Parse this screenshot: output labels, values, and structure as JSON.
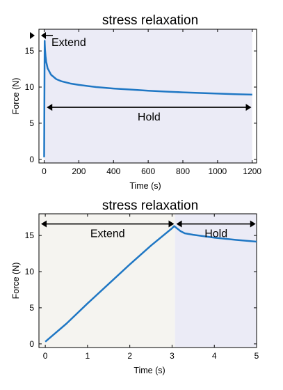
{
  "chart_data": [
    {
      "type": "line",
      "title": "stress relaxation",
      "xlabel": "Time (s)",
      "ylabel": "Force (N)",
      "xlim": [
        -30,
        1225
      ],
      "ylim": [
        -0.5,
        18
      ],
      "xticks": [
        0,
        200,
        400,
        600,
        800,
        1000,
        1200
      ],
      "yticks": [
        0,
        5,
        10,
        15
      ],
      "grid": false,
      "line_color": "#1f77c4",
      "regions": [
        {
          "label": "Extend",
          "x": [
            0,
            3
          ],
          "color": "#f5f4f0"
        },
        {
          "label": "Hold",
          "x": [
            3,
            1200
          ],
          "color": "#ebebf6"
        }
      ],
      "annotations": [
        {
          "label": "Extend",
          "x": [
            0,
            3
          ],
          "y": 17.2
        },
        {
          "label": "Hold",
          "x": [
            15,
            1195
          ],
          "y": 7.2
        }
      ],
      "series": [
        {
          "x": [
            0,
            3,
            3.5,
            5,
            8,
            12,
            20,
            40,
            70,
            100,
            150,
            200,
            300,
            400,
            500,
            600,
            700,
            800,
            900,
            1000,
            1100,
            1200
          ],
          "y": [
            0.3,
            16.4,
            16.0,
            15.2,
            14.3,
            13.5,
            12.6,
            11.7,
            11.1,
            10.8,
            10.5,
            10.3,
            10.0,
            9.8,
            9.65,
            9.5,
            9.38,
            9.27,
            9.18,
            9.1,
            9.02,
            8.95
          ]
        }
      ]
    },
    {
      "type": "line",
      "title": "stress relaxation",
      "xlabel": "Time (s)",
      "ylabel": "Force (N)",
      "xlim": [
        -0.15,
        5
      ],
      "ylim": [
        -0.5,
        18
      ],
      "xticks": [
        0,
        1,
        2,
        3,
        4,
        5
      ],
      "yticks": [
        0,
        5,
        10,
        15
      ],
      "grid": false,
      "line_color": "#1f77c4",
      "regions": [
        {
          "label": "Extend",
          "x": [
            -0.15,
            3.07
          ],
          "color": "#f5f4f0"
        },
        {
          "label": "Hold",
          "x": [
            3.07,
            5
          ],
          "color": "#ebebf6"
        }
      ],
      "annotations": [
        {
          "label": "Extend",
          "x": [
            -0.1,
            3.05
          ],
          "y": 16.6
        },
        {
          "label": "Hold",
          "x": [
            3.1,
            4.98
          ],
          "y": 16.6
        }
      ],
      "series": [
        {
          "x": [
            0,
            0.5,
            1,
            1.5,
            2,
            2.5,
            3,
            3.05,
            3.2,
            3.3,
            3.5,
            4,
            4.5,
            5
          ],
          "y": [
            0.3,
            2.8,
            5.6,
            8.3,
            11.0,
            13.6,
            16.0,
            16.3,
            15.6,
            15.3,
            15.1,
            14.7,
            14.4,
            14.15
          ]
        }
      ]
    }
  ]
}
